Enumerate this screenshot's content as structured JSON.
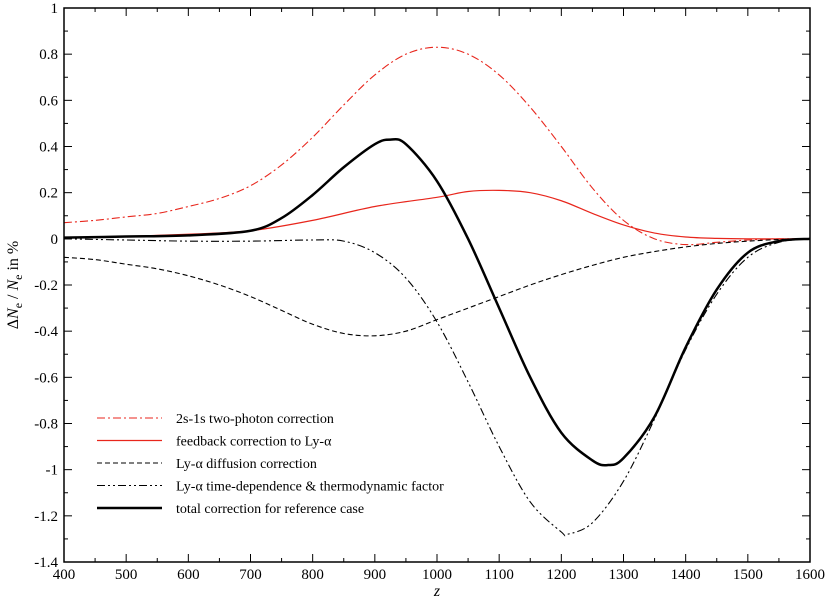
{
  "chart_data": {
    "type": "line",
    "title": "",
    "xlabel": "z",
    "ylabel": "ΔNe / Ne in %",
    "ylabel_parts": {
      "delta": "Δ",
      "n1": "N",
      "sub1": "e",
      "slash": " / ",
      "n2": "N",
      "sub2": "e",
      "suffix": " in %"
    },
    "xlim": [
      400,
      1600
    ],
    "ylim": [
      -1.4,
      1.0
    ],
    "xticks": [
      400,
      500,
      600,
      700,
      800,
      900,
      1000,
      1100,
      1200,
      1300,
      1400,
      1500,
      1600
    ],
    "xtick_labels": [
      "400",
      "500",
      "600",
      "700",
      "800",
      "900",
      "1000",
      "1100",
      "1200",
      "1300",
      "1400",
      "1500",
      "1600"
    ],
    "yticks": [
      1,
      0.8,
      0.6,
      0.4,
      0.2,
      0,
      -0.2,
      -0.4,
      -0.6,
      -0.8,
      -1,
      -1.2,
      -1.4
    ],
    "ytick_labels": [
      "1",
      "0.8",
      "0.6",
      "0.4",
      "0.2",
      "0",
      "-0.2",
      "-0.4",
      "-0.6",
      "-0.8",
      "-1",
      "-1.2",
      "-1.4"
    ],
    "grid": false,
    "legend_position": "bottom-left",
    "series": [
      {
        "name": "2s-1s two-photon correction",
        "color": "#e8261c",
        "style": "dashdot",
        "points": [
          [
            400,
            0.07
          ],
          [
            450,
            0.08
          ],
          [
            500,
            0.095
          ],
          [
            550,
            0.11
          ],
          [
            600,
            0.14
          ],
          [
            650,
            0.175
          ],
          [
            700,
            0.23
          ],
          [
            750,
            0.32
          ],
          [
            800,
            0.44
          ],
          [
            850,
            0.58
          ],
          [
            900,
            0.71
          ],
          [
            950,
            0.8
          ],
          [
            1000,
            0.83
          ],
          [
            1050,
            0.8
          ],
          [
            1100,
            0.71
          ],
          [
            1150,
            0.57
          ],
          [
            1200,
            0.4
          ],
          [
            1250,
            0.22
          ],
          [
            1300,
            0.08
          ],
          [
            1350,
            0.0
          ],
          [
            1400,
            -0.025
          ],
          [
            1450,
            -0.015
          ],
          [
            1500,
            -0.005
          ],
          [
            1550,
            0.0
          ],
          [
            1600,
            0.0
          ]
        ]
      },
      {
        "name": "feedback correction to Ly-α",
        "color": "#e8261c",
        "style": "solid",
        "points": [
          [
            400,
            0.005
          ],
          [
            500,
            0.01
          ],
          [
            600,
            0.02
          ],
          [
            700,
            0.035
          ],
          [
            800,
            0.08
          ],
          [
            900,
            0.14
          ],
          [
            1000,
            0.18
          ],
          [
            1050,
            0.205
          ],
          [
            1100,
            0.21
          ],
          [
            1150,
            0.2
          ],
          [
            1200,
            0.165
          ],
          [
            1250,
            0.11
          ],
          [
            1300,
            0.06
          ],
          [
            1350,
            0.025
          ],
          [
            1400,
            0.008
          ],
          [
            1450,
            0.002
          ],
          [
            1500,
            0.0
          ],
          [
            1600,
            0.0
          ]
        ]
      },
      {
        "name": "Ly-α diffusion correction",
        "color": "#000000",
        "style": "dashed",
        "points": [
          [
            400,
            -0.08
          ],
          [
            450,
            -0.09
          ],
          [
            500,
            -0.11
          ],
          [
            550,
            -0.13
          ],
          [
            600,
            -0.16
          ],
          [
            650,
            -0.2
          ],
          [
            700,
            -0.25
          ],
          [
            750,
            -0.31
          ],
          [
            800,
            -0.37
          ],
          [
            850,
            -0.41
          ],
          [
            900,
            -0.42
          ],
          [
            950,
            -0.4
          ],
          [
            1000,
            -0.35
          ],
          [
            1050,
            -0.3
          ],
          [
            1100,
            -0.25
          ],
          [
            1150,
            -0.2
          ],
          [
            1200,
            -0.155
          ],
          [
            1250,
            -0.115
          ],
          [
            1300,
            -0.08
          ],
          [
            1350,
            -0.055
          ],
          [
            1400,
            -0.035
          ],
          [
            1450,
            -0.02
          ],
          [
            1500,
            -0.01
          ],
          [
            1550,
            -0.003
          ],
          [
            1600,
            0.0
          ]
        ]
      },
      {
        "name": "Ly-α time-dependence & thermodynamic factor",
        "color": "#000000",
        "style": "dashdotdot",
        "points": [
          [
            400,
            0.0
          ],
          [
            500,
            -0.005
          ],
          [
            600,
            -0.01
          ],
          [
            700,
            -0.01
          ],
          [
            800,
            -0.005
          ],
          [
            850,
            -0.01
          ],
          [
            900,
            -0.06
          ],
          [
            950,
            -0.17
          ],
          [
            1000,
            -0.36
          ],
          [
            1050,
            -0.62
          ],
          [
            1100,
            -0.9
          ],
          [
            1150,
            -1.14
          ],
          [
            1200,
            -1.27
          ],
          [
            1210,
            -1.28
          ],
          [
            1250,
            -1.23
          ],
          [
            1300,
            -1.05
          ],
          [
            1350,
            -0.78
          ],
          [
            1400,
            -0.48
          ],
          [
            1450,
            -0.24
          ],
          [
            1500,
            -0.08
          ],
          [
            1550,
            -0.015
          ],
          [
            1600,
            0.0
          ]
        ]
      },
      {
        "name": "total correction for reference case",
        "color": "#000000",
        "style": "solid-thick",
        "points": [
          [
            400,
            0.005
          ],
          [
            500,
            0.01
          ],
          [
            600,
            0.015
          ],
          [
            700,
            0.035
          ],
          [
            750,
            0.09
          ],
          [
            800,
            0.19
          ],
          [
            850,
            0.31
          ],
          [
            900,
            0.41
          ],
          [
            925,
            0.43
          ],
          [
            950,
            0.41
          ],
          [
            1000,
            0.25
          ],
          [
            1050,
            0.0
          ],
          [
            1100,
            -0.3
          ],
          [
            1150,
            -0.6
          ],
          [
            1200,
            -0.84
          ],
          [
            1250,
            -0.96
          ],
          [
            1275,
            -0.98
          ],
          [
            1300,
            -0.95
          ],
          [
            1350,
            -0.77
          ],
          [
            1400,
            -0.47
          ],
          [
            1450,
            -0.22
          ],
          [
            1500,
            -0.06
          ],
          [
            1550,
            -0.01
          ],
          [
            1600,
            0.0
          ]
        ]
      }
    ]
  }
}
